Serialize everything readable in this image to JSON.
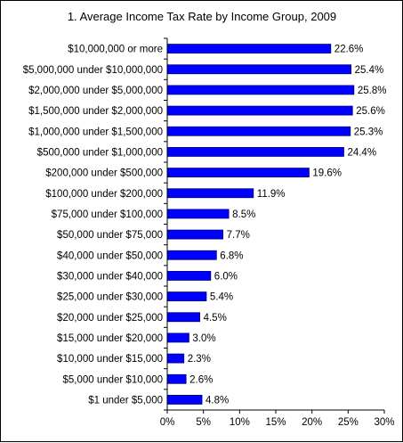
{
  "chart_data": {
    "type": "bar",
    "orientation": "horizontal",
    "title": "1. Average Income Tax Rate by Income Group, 2009",
    "categories": [
      "$10,000,000 or more",
      "$5,000,000 under $10,000,000",
      "$2,000,000 under $5,000,000",
      "$1,500,000 under $2,000,000",
      "$1,000,000 under $1,500,000",
      "$500,000 under $1,000,000",
      "$200,000 under $500,000",
      "$100,000 under $200,000",
      "$75,000 under $100,000",
      "$50,000 under $75,000",
      "$40,000 under $50,000",
      "$30,000 under $40,000",
      "$25,000 under $30,000",
      "$20,000 under $25,000",
      "$15,000 under $20,000",
      "$10,000 under $15,000",
      "$5,000 under $10,000",
      "$1 under $5,000"
    ],
    "values": [
      22.6,
      25.4,
      25.8,
      25.6,
      25.3,
      24.4,
      19.6,
      11.9,
      8.5,
      7.7,
      6.8,
      6.0,
      5.4,
      4.5,
      3.0,
      2.3,
      2.6,
      4.8
    ],
    "data_labels": [
      "22.6%",
      "25.4%",
      "25.8%",
      "25.6%",
      "25.3%",
      "24.4%",
      "19.6%",
      "11.9%",
      "8.5%",
      "7.7%",
      "6.8%",
      "6.0%",
      "5.4%",
      "4.5%",
      "3.0%",
      "2.3%",
      "2.6%",
      "4.8%"
    ],
    "xlim": [
      0,
      30
    ],
    "x_ticks": [
      0,
      5,
      10,
      15,
      20,
      25,
      30
    ],
    "x_tick_labels": [
      "0%",
      "5%",
      "10%",
      "15%",
      "20%",
      "25%",
      "30%"
    ],
    "grid": false,
    "legend": false,
    "bar_color": "#0000FF",
    "bar_edge_color": "#000080"
  }
}
